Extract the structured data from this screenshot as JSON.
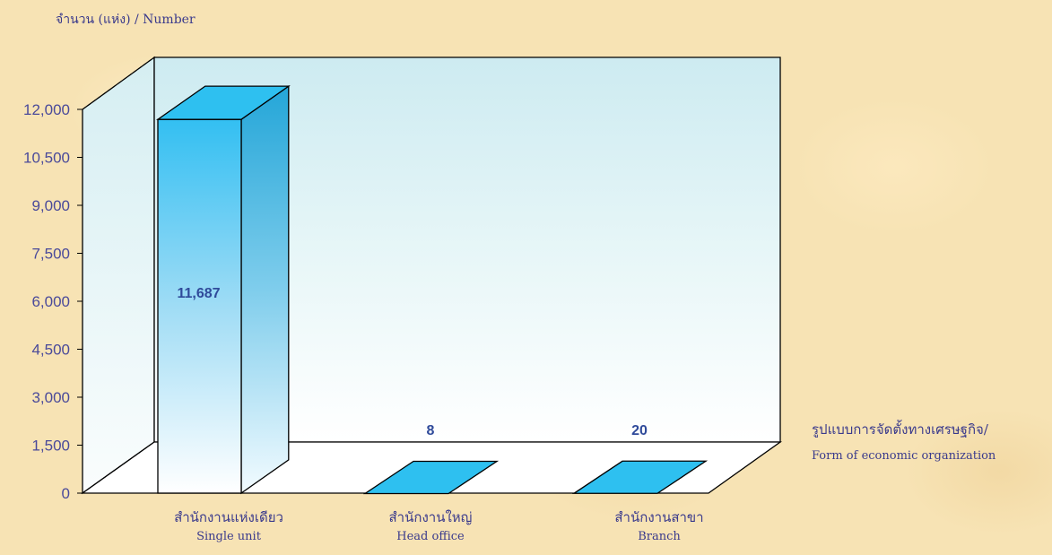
{
  "chart_data": {
    "type": "bar",
    "ylabel": "จำนวน (แห่ง) / Number",
    "xlabel_th": "รูปแบบการจัดตั้งทางเศรษฐกิจ/",
    "xlabel_en": "Form of  economic organization",
    "ylim": [
      0,
      12000
    ],
    "yticks": [
      "0",
      "1,500",
      "3,000",
      "4,500",
      "6,000",
      "7,500",
      "9,000",
      "10,500",
      "12,000"
    ],
    "categories": [
      {
        "th": "สำนักงานแห่งเดียว",
        "en": "Single unit"
      },
      {
        "th": "สำนักงานใหญ่",
        "en": "Head office"
      },
      {
        "th": "สำนักงานสาขา",
        "en": "Branch"
      }
    ],
    "values": [
      11687,
      8,
      20
    ],
    "data_labels": [
      "11,687",
      "8",
      "20"
    ],
    "colors": {
      "bar_top": "#2ec0f0",
      "bar_side": "#24a6d8",
      "bar_front_top": "#33bff2",
      "bar_front_bottom": "#ffffff",
      "wall": "#d9f1f5",
      "text": "#3a3a8c",
      "axis_text": "#4a4a9a"
    }
  }
}
